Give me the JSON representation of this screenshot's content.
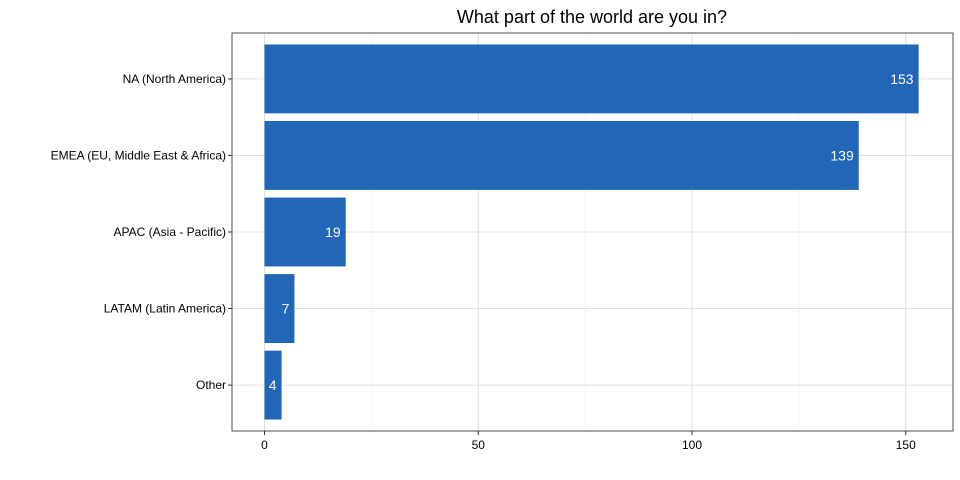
{
  "chart_data": {
    "type": "bar",
    "orientation": "horizontal",
    "title": "What part of the world are you in?",
    "categories": [
      "NA (North America)",
      "EMEA (EU, Middle East & Africa)",
      "APAC (Asia - Pacific)",
      "LATAM (Latin America)",
      "Other"
    ],
    "values": [
      153,
      139,
      19,
      7,
      4
    ],
    "xlim": [
      0,
      160
    ],
    "xticks": [
      0,
      50,
      100,
      150
    ],
    "grid": true,
    "bar_color": "#2166b7",
    "data_labels": true
  }
}
